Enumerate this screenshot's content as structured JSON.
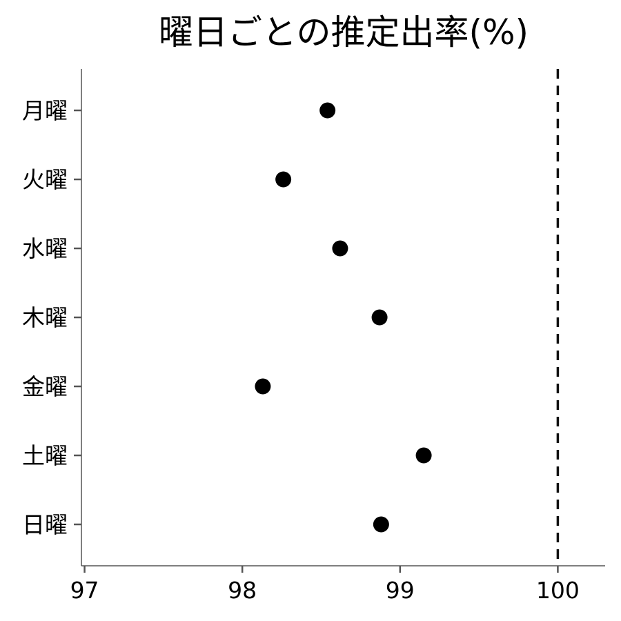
{
  "chart_data": {
    "type": "scatter",
    "title": "曜日ごとの推定出率(%)",
    "xlabel": "",
    "ylabel": "",
    "xlim": [
      96.98,
      100.3
    ],
    "x_ticks": [
      "97",
      "98",
      "99",
      "100"
    ],
    "x_tick_values": [
      97,
      98,
      99,
      100
    ],
    "categories": [
      "月曜",
      "火曜",
      "水曜",
      "木曜",
      "金曜",
      "土曜",
      "日曜"
    ],
    "values": [
      98.54,
      98.26,
      98.62,
      98.87,
      98.13,
      99.15,
      98.88
    ],
    "reference_line": {
      "x": 100,
      "style": "dashed"
    },
    "grid": false,
    "legend": "none",
    "point_color": "#000000"
  }
}
